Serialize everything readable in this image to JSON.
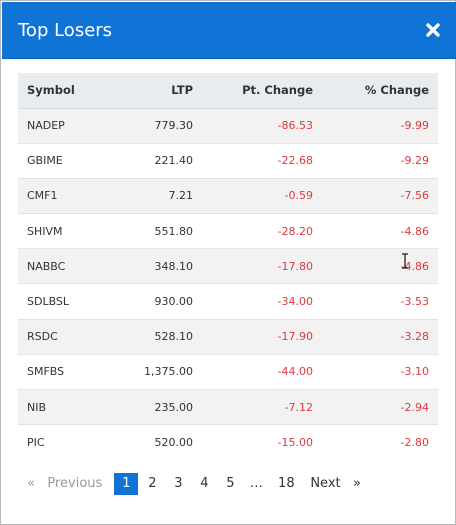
{
  "dialog": {
    "title": "Top Losers",
    "close_icon": "close-icon",
    "colors": {
      "header": "#1074d6",
      "negative": "#e0393e",
      "active_page": "#1074d6"
    }
  },
  "table": {
    "headers": [
      "Symbol",
      "LTP",
      "Pt. Change",
      "% Change"
    ],
    "rows": [
      {
        "symbol": "NADEP",
        "ltp": "779.30",
        "pt_change": "-86.53",
        "pct_change": "-9.99"
      },
      {
        "symbol": "GBIME",
        "ltp": "221.40",
        "pt_change": "-22.68",
        "pct_change": "-9.29"
      },
      {
        "symbol": "CMF1",
        "ltp": "7.21",
        "pt_change": "-0.59",
        "pct_change": "-7.56"
      },
      {
        "symbol": "SHIVM",
        "ltp": "551.80",
        "pt_change": "-28.20",
        "pct_change": "-4.86"
      },
      {
        "symbol": "NABBC",
        "ltp": "348.10",
        "pt_change": "-17.80",
        "pct_change": "-4.86"
      },
      {
        "symbol": "SDLBSL",
        "ltp": "930.00",
        "pt_change": "-34.00",
        "pct_change": "-3.53"
      },
      {
        "symbol": "RSDC",
        "ltp": "528.10",
        "pt_change": "-17.90",
        "pct_change": "-3.28"
      },
      {
        "symbol": "SMFBS",
        "ltp": "1,375.00",
        "pt_change": "-44.00",
        "pct_change": "-3.10"
      },
      {
        "symbol": "NIB",
        "ltp": "235.00",
        "pt_change": "-7.12",
        "pct_change": "-2.94"
      },
      {
        "symbol": "PIC",
        "ltp": "520.00",
        "pt_change": "-15.00",
        "pct_change": "-2.80"
      }
    ]
  },
  "pagination": {
    "prev_arrow": "«",
    "prev_label": "Previous",
    "pages": [
      "1",
      "2",
      "3",
      "4",
      "5"
    ],
    "active_page": "1",
    "ellipsis": "…",
    "last_page": "18",
    "next_label": "Next",
    "next_arrow": "»"
  }
}
